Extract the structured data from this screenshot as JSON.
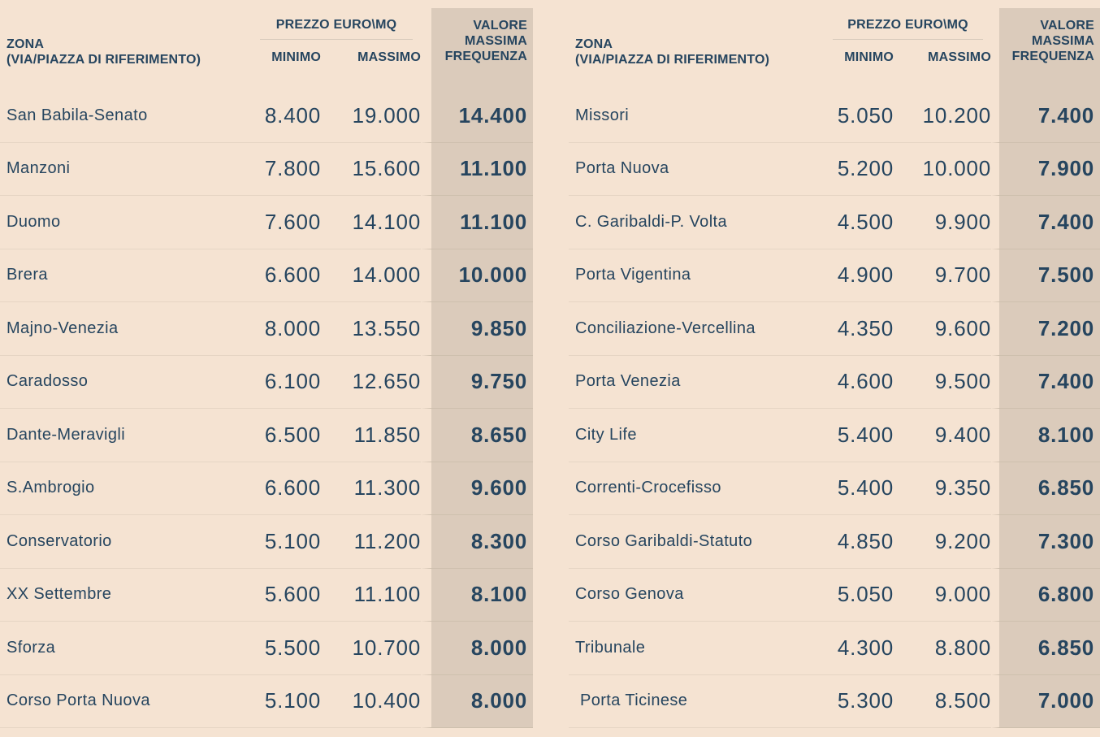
{
  "colors": {
    "background": "#f5e3d2",
    "highlight_column": "#dbcbbb",
    "text_navy": "#26455f",
    "row_divider": "#e6d5c4",
    "highlight_divider": "#cec0ae",
    "header_rule": "#d9cbbd"
  },
  "header": {
    "zone_label_line1": "ZONA",
    "zone_label_line2": "(VIA/PIAZZA DI RIFERIMENTO)",
    "price_group_label": "PREZZO EURO\\MQ",
    "min_label": "MINIMO",
    "max_label": "MASSIMO",
    "freq_label_lines": [
      "VALORE",
      "MASSIMA",
      "FREQUENZA"
    ]
  },
  "chart_data": [
    {
      "type": "table",
      "columns": [
        "ZONA (VIA/PIAZZA DI RIFERIMENTO)",
        "PREZZO EURO\\MQ MINIMO",
        "PREZZO EURO\\MQ MASSIMO",
        "VALORE MASSIMA FREQUENZA"
      ],
      "rows": [
        [
          "San Babila-Senato",
          "8.400",
          "19.000",
          "14.400"
        ],
        [
          "Manzoni",
          "7.800",
          "15.600",
          "11.100"
        ],
        [
          "Duomo",
          "7.600",
          "14.100",
          "11.100"
        ],
        [
          "Brera",
          "6.600",
          "14.000",
          "10.000"
        ],
        [
          "Majno-Venezia",
          "8.000",
          "13.550",
          "9.850"
        ],
        [
          "Caradosso",
          "6.100",
          "12.650",
          "9.750"
        ],
        [
          "Dante-Meravigli",
          "6.500",
          "11.850",
          "8.650"
        ],
        [
          "S.Ambrogio",
          "6.600",
          "11.300",
          "9.600"
        ],
        [
          "Conservatorio",
          "5.100",
          "11.200",
          "8.300"
        ],
        [
          "XX Settembre",
          "5.600",
          "11.100",
          "8.100"
        ],
        [
          "Sforza",
          "5.500",
          "10.700",
          "8.000"
        ],
        [
          "Corso Porta Nuova",
          "5.100",
          "10.400",
          "8.000"
        ]
      ]
    },
    {
      "type": "table",
      "columns": [
        "ZONA (VIA/PIAZZA DI RIFERIMENTO)",
        "PREZZO EURO\\MQ MINIMO",
        "PREZZO EURO\\MQ MASSIMO",
        "VALORE MASSIMA FREQUENZA"
      ],
      "rows": [
        [
          "Missori",
          "5.050",
          "10.200",
          "7.400"
        ],
        [
          "Porta Nuova",
          "5.200",
          "10.000",
          "7.900"
        ],
        [
          "C. Garibaldi-P. Volta",
          "4.500",
          "9.900",
          "7.400"
        ],
        [
          "Porta Vigentina",
          "4.900",
          "9.700",
          "7.500"
        ],
        [
          "Conciliazione-Vercellina",
          "4.350",
          "9.600",
          "7.200"
        ],
        [
          "Porta Venezia",
          "4.600",
          "9.500",
          "7.400"
        ],
        [
          "City Life",
          "5.400",
          "9.400",
          "8.100"
        ],
        [
          "Correnti-Crocefisso",
          "5.400",
          "9.350",
          "6.850"
        ],
        [
          "Corso Garibaldi-Statuto",
          "4.850",
          "9.200",
          "7.300"
        ],
        [
          "Corso Genova",
          "5.050",
          "9.000",
          "6.800"
        ],
        [
          "Tribunale",
          "4.300",
          "8.800",
          "6.850"
        ],
        [
          " Porta Ticinese",
          "5.300",
          "8.500",
          "7.000"
        ]
      ]
    }
  ]
}
